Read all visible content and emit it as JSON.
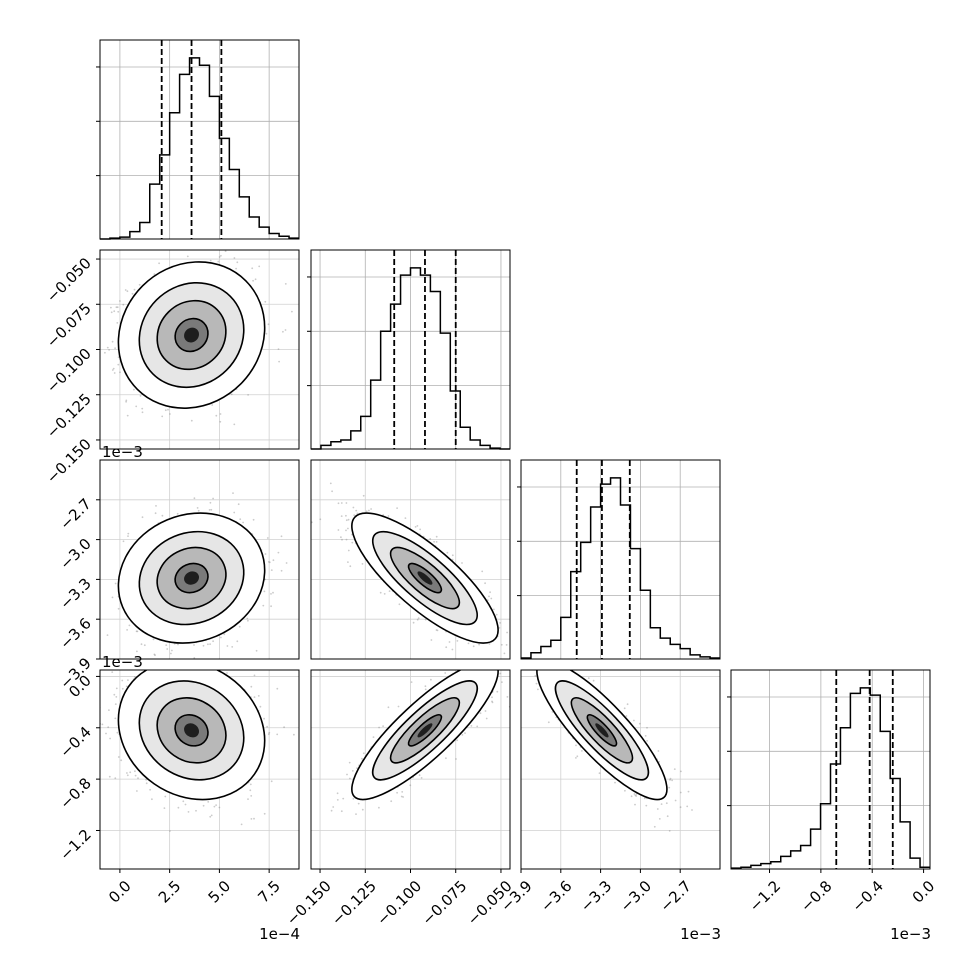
{
  "chart_data": {
    "type": "corner",
    "grid": true,
    "quantiles_shown": [
      0.16,
      0.5,
      0.84
    ],
    "parameters": [
      {
        "offset_label": "1e−4",
        "range": [
          -1.0,
          9.0
        ],
        "ticks": [
          0.0,
          2.5,
          5.0,
          7.5
        ],
        "tick_labels": [
          "0.0",
          "2.5",
          "5.0",
          "7.5"
        ],
        "quantiles": [
          2.1,
          3.6,
          5.1
        ],
        "histogram": {
          "edges": [
            -1.0,
            -0.5,
            0.0,
            0.5,
            1.0,
            1.5,
            2.0,
            2.5,
            3.0,
            3.5,
            4.0,
            4.5,
            5.0,
            5.5,
            6.0,
            6.5,
            7.0,
            7.5,
            8.0,
            8.5,
            9.0
          ],
          "heights": [
            0.0,
            0.005,
            0.01,
            0.04,
            0.09,
            0.3,
            0.46,
            0.69,
            0.9,
            0.99,
            0.95,
            0.78,
            0.55,
            0.38,
            0.23,
            0.12,
            0.065,
            0.03,
            0.015,
            0.005
          ]
        }
      },
      {
        "offset_label": "",
        "range": [
          -0.155,
          -0.045
        ],
        "ticks": [
          -0.15,
          -0.125,
          -0.1,
          -0.075,
          -0.05
        ],
        "tick_labels": [
          "−0.150",
          "−0.125",
          "−0.100",
          "−0.075",
          "−0.050"
        ],
        "quantiles": [
          -0.109,
          -0.092,
          -0.075
        ],
        "histogram": {
          "edges": [
            -0.155,
            -0.1495,
            -0.144,
            -0.1385,
            -0.133,
            -0.1275,
            -0.122,
            -0.1165,
            -0.111,
            -0.1055,
            -0.1,
            -0.0945,
            -0.089,
            -0.0835,
            -0.078,
            -0.0725,
            -0.067,
            -0.0615,
            -0.056,
            -0.0505,
            -0.045
          ],
          "heights": [
            0.0,
            0.02,
            0.04,
            0.05,
            0.1,
            0.18,
            0.38,
            0.65,
            0.8,
            0.96,
            1.0,
            0.96,
            0.87,
            0.64,
            0.32,
            0.12,
            0.05,
            0.02,
            0.005,
            0.0
          ]
        }
      },
      {
        "offset_label": "1e−3",
        "range": [
          -3.9,
          -2.4
        ],
        "ticks": [
          -3.9,
          -3.6,
          -3.3,
          -3.0,
          -2.7
        ],
        "tick_labels": [
          "−3.9",
          "−3.6",
          "−3.3",
          "−3.0",
          "−2.7"
        ],
        "quantiles": [
          -3.48,
          -3.29,
          -3.08
        ],
        "histogram": {
          "edges": [
            -3.9,
            -3.825,
            -3.75,
            -3.675,
            -3.6,
            -3.525,
            -3.45,
            -3.375,
            -3.3,
            -3.225,
            -3.15,
            -3.075,
            -3.0,
            -2.925,
            -2.85,
            -2.775,
            -2.7,
            -2.625,
            -2.55,
            -2.475,
            -2.4
          ],
          "heights": [
            0.005,
            0.03,
            0.06,
            0.09,
            0.2,
            0.42,
            0.56,
            0.73,
            0.84,
            0.87,
            0.74,
            0.53,
            0.33,
            0.15,
            0.1,
            0.07,
            0.05,
            0.02,
            0.01,
            0.005
          ]
        }
      },
      {
        "offset_label": "1e−3",
        "range": [
          -1.5,
          0.05
        ],
        "ticks": [
          -1.2,
          -0.8,
          -0.4,
          0.0
        ],
        "tick_labels": [
          "−1.2",
          "−0.8",
          "−0.4",
          "0.0"
        ],
        "quantiles": [
          -0.68,
          -0.42,
          -0.24
        ],
        "histogram": {
          "edges": [
            -1.5,
            -1.4225,
            -1.345,
            -1.2675,
            -1.19,
            -1.1125,
            -1.035,
            -0.9575,
            -0.88,
            -0.8025,
            -0.725,
            -0.6475,
            -0.57,
            -0.4925,
            -0.415,
            -0.3375,
            -0.26,
            -0.1825,
            -0.105,
            -0.0275,
            0.05
          ],
          "heights": [
            0.005,
            0.01,
            0.02,
            0.03,
            0.04,
            0.07,
            0.1,
            0.13,
            0.22,
            0.36,
            0.58,
            0.78,
            0.97,
            1.0,
            0.96,
            0.76,
            0.5,
            0.26,
            0.06,
            0.01
          ]
        }
      }
    ],
    "pairs": [
      {
        "row": 1,
        "col": 0,
        "mean": [
          3.6,
          -0.092
        ],
        "std": [
          1.5,
          0.0165
        ],
        "corr": 0.1
      },
      {
        "row": 2,
        "col": 0,
        "mean": [
          3.6,
          -3.29
        ],
        "std": [
          1.5,
          0.2
        ],
        "corr": 0.12
      },
      {
        "row": 2,
        "col": 1,
        "mean": [
          -0.092,
          -3.29
        ],
        "std": [
          0.0165,
          0.2
        ],
        "corr": -0.8
      },
      {
        "row": 3,
        "col": 0,
        "mean": [
          3.6,
          -0.42
        ],
        "std": [
          1.5,
          0.22
        ],
        "corr": -0.15
      },
      {
        "row": 3,
        "col": 1,
        "mean": [
          -0.092,
          -0.42
        ],
        "std": [
          0.0165,
          0.22
        ],
        "corr": 0.85
      },
      {
        "row": 3,
        "col": 2,
        "mean": [
          -3.29,
          -0.42
        ],
        "std": [
          0.2,
          0.22
        ],
        "corr": -0.85
      }
    ]
  }
}
